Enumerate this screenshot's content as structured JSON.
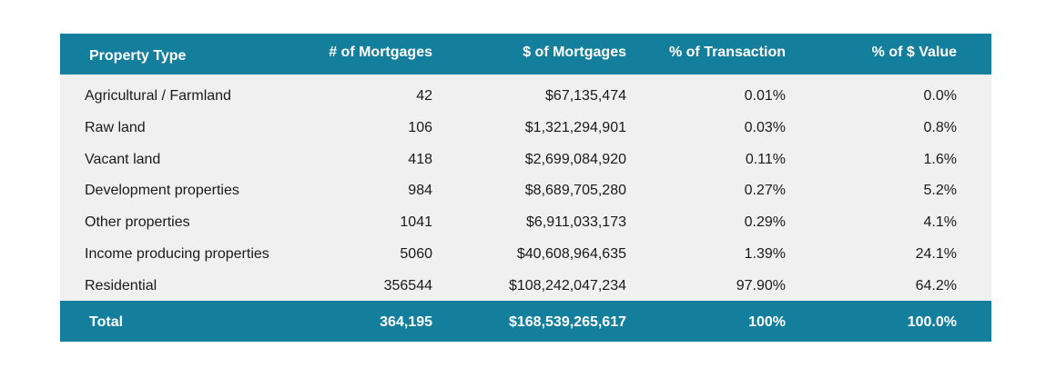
{
  "table": {
    "headers": [
      "Property Type",
      "# of Mortgages",
      "$ of Mortgages",
      "% of Transaction",
      "% of $ Value"
    ],
    "rows": [
      [
        "Agricultural / Farmland",
        "42",
        "$67,135,474",
        "0.01%",
        "0.0%"
      ],
      [
        "Raw land",
        "106",
        "$1,321,294,901",
        "0.03%",
        "0.8%"
      ],
      [
        "Vacant land",
        "418",
        "$2,699,084,920",
        "0.11%",
        "1.6%"
      ],
      [
        "Development properties",
        "984",
        "$8,689,705,280",
        "0.27%",
        "5.2%"
      ],
      [
        "Other properties",
        "1041",
        "$6,911,033,173",
        "0.29%",
        "4.1%"
      ],
      [
        "Income producing properties",
        "5060",
        "$40,608,964,635",
        "1.39%",
        "24.1%"
      ],
      [
        "Residential",
        "356544",
        "$108,242,047,234",
        "97.90%",
        "64.2%"
      ]
    ],
    "total": [
      "Total",
      "364,195",
      "$168,539,265,617",
      "100%",
      "100.0%"
    ]
  },
  "colors": {
    "header_bg": "#137f9c",
    "body_bg": "#f0f0f0",
    "header_text": "#ffffff"
  }
}
